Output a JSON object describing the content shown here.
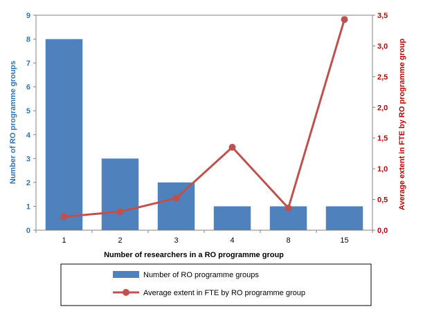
{
  "chart_data": {
    "type": "bar+line",
    "categories": [
      "1",
      "2",
      "3",
      "4",
      "8",
      "15"
    ],
    "series": [
      {
        "name": "Number of RO programme groups",
        "type": "bar",
        "axis": "left",
        "color": "#4F81BD",
        "values": [
          8,
          3,
          2,
          1,
          1,
          1
        ]
      },
      {
        "name": "Average extent in FTE by RO programme group",
        "type": "line",
        "axis": "right",
        "color": "#C0504D",
        "values": [
          0.22,
          0.3,
          0.52,
          1.35,
          0.36,
          3.43
        ]
      }
    ],
    "xlabel": "Number of researchers in a RO programme group",
    "ylabel_left": "Number of RO programme groups",
    "ylabel_right": "Average extent in FTE by RO programme group",
    "ylim_left": [
      0,
      9
    ],
    "yticks_left": [
      "0",
      "1",
      "2",
      "3",
      "4",
      "5",
      "6",
      "7",
      "8",
      "9"
    ],
    "ylim_right": [
      0,
      3.5
    ],
    "yticks_right": [
      "0,0",
      "0,5",
      "1,0",
      "1,5",
      "2,0",
      "2,5",
      "3,0",
      "3,5"
    ],
    "grid": false,
    "legend_position": "bottom"
  }
}
